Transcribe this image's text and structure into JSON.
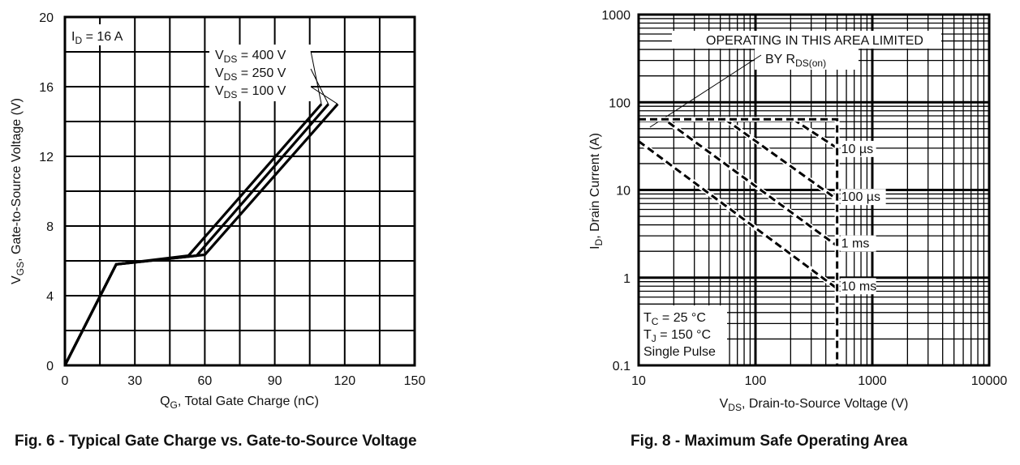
{
  "chart_data": [
    {
      "type": "line",
      "title": "Fig. 6 - Typical Gate Charge vs. Gate-to-Source Voltage",
      "xlabel": {
        "main": "Q",
        "sub": "G",
        "rest": ", Total Gate Charge (nC)"
      },
      "ylabel": {
        "main": "V",
        "sub": "GS",
        "rest": ", Gate-to-Source Voltage (V)"
      },
      "xlim": [
        0,
        150
      ],
      "ylim": [
        0,
        20
      ],
      "x_ticks": [
        "0",
        "30",
        "60",
        "90",
        "120",
        "150"
      ],
      "y_ticks": [
        "0",
        "4",
        "8",
        "12",
        "16",
        "20"
      ],
      "grid": true,
      "annotation": {
        "main": "I",
        "sub": "D",
        "rest": " = 16 A"
      },
      "series": [
        {
          "name": {
            "main": "V",
            "sub": "DS",
            "rest": " = 400 V"
          },
          "x": [
            0,
            22,
            53,
            110
          ],
          "y": [
            0,
            5.8,
            6.3,
            15
          ]
        },
        {
          "name": {
            "main": "V",
            "sub": "DS",
            "rest": " = 250 V"
          },
          "x": [
            0,
            22,
            56.5,
            113
          ],
          "y": [
            0,
            5.8,
            6.3,
            15
          ]
        },
        {
          "name": {
            "main": "V",
            "sub": "DS",
            "rest": " = 100 V"
          },
          "x": [
            0,
            22,
            60,
            117
          ],
          "y": [
            0,
            5.8,
            6.35,
            15
          ]
        }
      ],
      "colors": {
        "line": "#000000",
        "grid": "#000000"
      }
    },
    {
      "type": "line",
      "title": "Fig. 8 - Maximum Safe Operating Area",
      "xlabel": {
        "main": "V",
        "sub": "DS",
        "rest": ", Drain-to-Source Voltage (V)"
      },
      "ylabel": {
        "main": "I",
        "sub": "D",
        "rest": ", Drain Current (A)"
      },
      "xscale": "log",
      "yscale": "log",
      "xlim": [
        10,
        10000
      ],
      "ylim": [
        0.1,
        1000
      ],
      "x_ticks": [
        "10",
        "100",
        "1000",
        "10000"
      ],
      "y_ticks": [
        "0.1",
        "1",
        "10",
        "100",
        "1000"
      ],
      "grid": true,
      "limit_text": {
        "line1": "OPERATING IN THIS AREA LIMITED",
        "line2_main": "BY R",
        "line2_sub": "DS(on)"
      },
      "conditions": [
        {
          "main": "T",
          "sub": "C",
          "rest": " = 25 °C"
        },
        {
          "main": "T",
          "sub": "J",
          "rest": " = 150 °C"
        },
        {
          "main": "Single Pulse",
          "sub": "",
          "rest": ""
        }
      ],
      "limits": {
        "x": [
          10,
          500,
          500
        ],
        "y": [
          64,
          64,
          0.1
        ]
      },
      "series": [
        {
          "name": "10 µs",
          "x": [
            210,
            500
          ],
          "y": [
            64,
            30
          ]
        },
        {
          "name": "100 µs",
          "x": [
            55,
            500
          ],
          "y": [
            64,
            7.8
          ]
        },
        {
          "name": "1 ms",
          "x": [
            18,
            500
          ],
          "y": [
            59,
            2.3
          ]
        },
        {
          "name": "10 ms",
          "x": [
            10,
            500
          ],
          "y": [
            36,
            0.75
          ]
        }
      ],
      "line_style": "dashed",
      "colors": {
        "line": "#000000",
        "grid": "#000000"
      }
    }
  ]
}
